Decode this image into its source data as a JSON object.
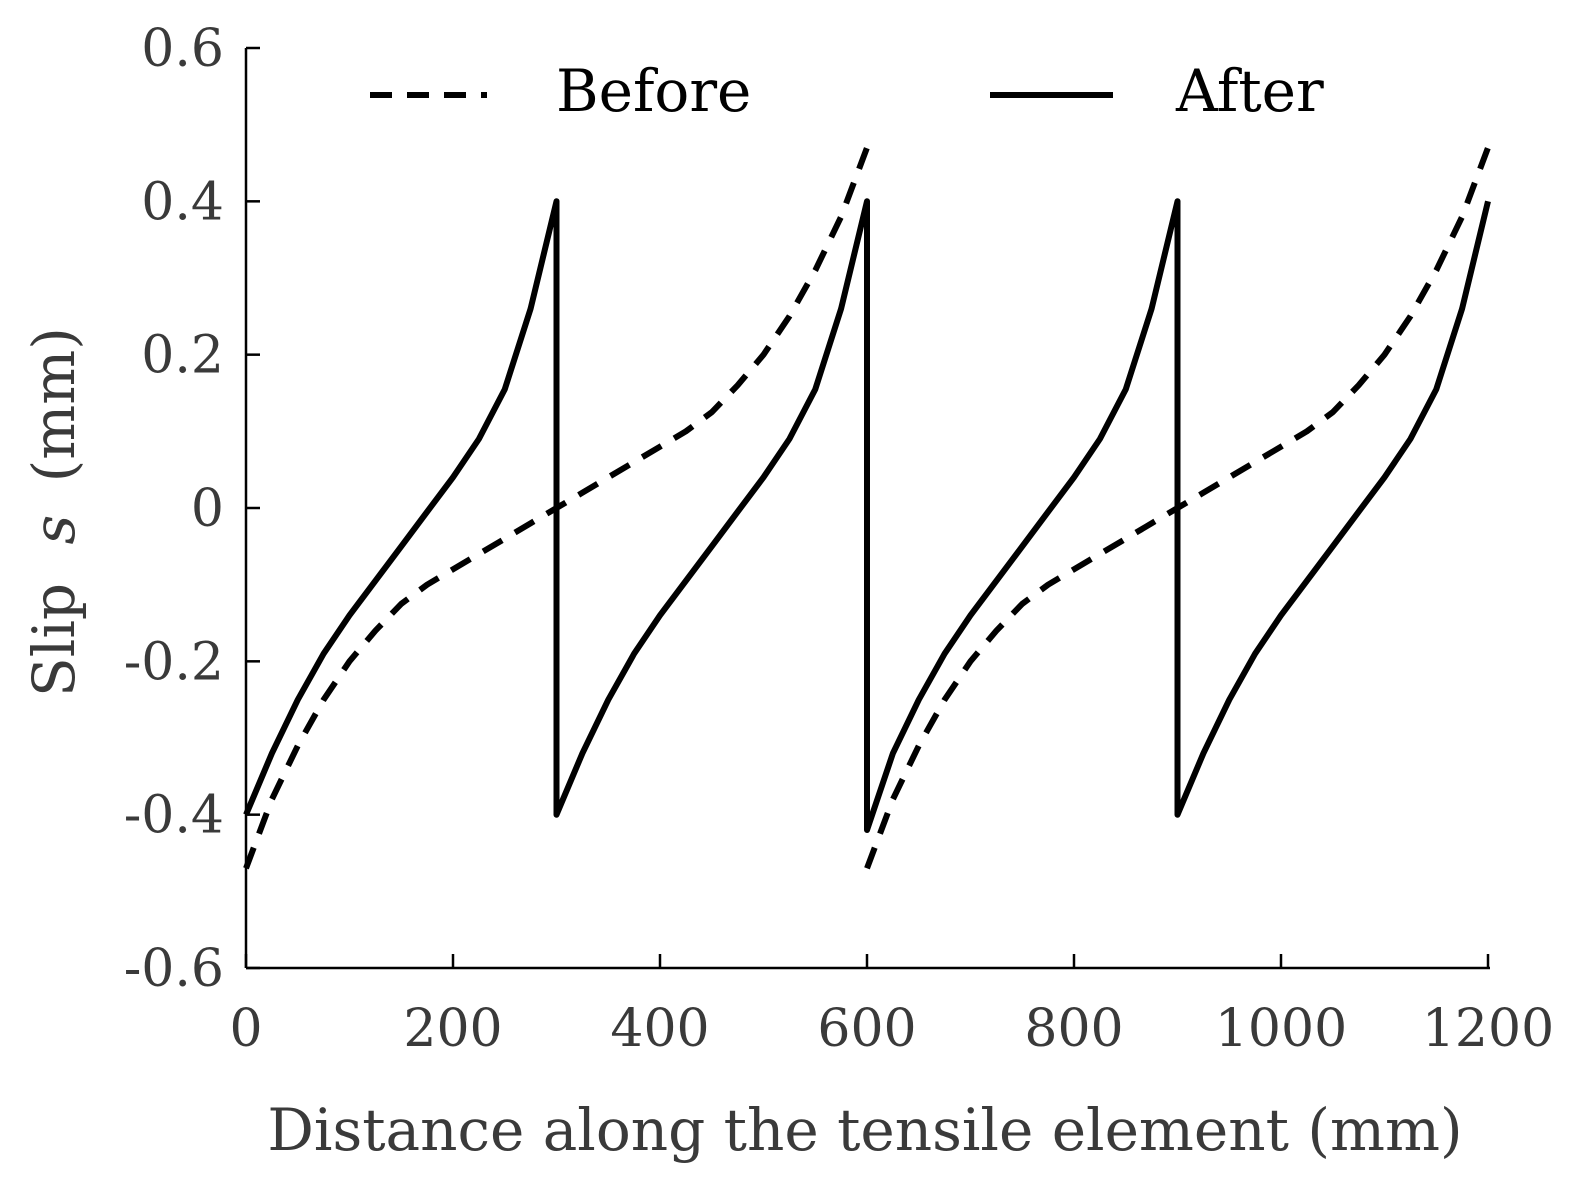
{
  "chart_data": {
    "type": "line",
    "title": "",
    "xlabel": "Distance along the tensile element (mm)",
    "ylabel_main": "Slip",
    "ylabel_symbol": "s",
    "ylabel_unit": "(mm)",
    "xlim": [
      0,
      1200
    ],
    "ylim": [
      -0.6,
      0.6
    ],
    "x_ticks": [
      0,
      200,
      400,
      600,
      800,
      1000,
      1200
    ],
    "x_tick_labels": [
      "0",
      "200",
      "400",
      "600",
      "800",
      "1000",
      "1200"
    ],
    "y_ticks": [
      0.6,
      0.4,
      0.2,
      0,
      -0.2,
      -0.4,
      -0.6
    ],
    "y_tick_labels": [
      "0.6",
      "0.4",
      "0.2",
      "0",
      "-0.2",
      "-0.4",
      "-0.6"
    ],
    "grid": false,
    "legend": {
      "placement": "top",
      "entries": [
        "Before",
        "After"
      ]
    },
    "series": [
      {
        "name": "Before",
        "style": "dashed",
        "segments": [
          [
            [
              0,
              -0.47
            ],
            [
              25,
              -0.38
            ],
            [
              50,
              -0.31
            ],
            [
              75,
              -0.25
            ],
            [
              100,
              -0.2
            ],
            [
              125,
              -0.16
            ],
            [
              150,
              -0.125
            ],
            [
              175,
              -0.1
            ],
            [
              200,
              -0.08
            ],
            [
              225,
              -0.06
            ],
            [
              250,
              -0.04
            ],
            [
              275,
              -0.02
            ],
            [
              300,
              0.0
            ],
            [
              325,
              0.02
            ],
            [
              350,
              0.04
            ],
            [
              375,
              0.06
            ],
            [
              400,
              0.08
            ],
            [
              425,
              0.1
            ],
            [
              450,
              0.125
            ],
            [
              475,
              0.16
            ],
            [
              500,
              0.2
            ],
            [
              525,
              0.25
            ],
            [
              550,
              0.31
            ],
            [
              575,
              0.38
            ],
            [
              600,
              0.47
            ]
          ],
          [
            [
              600,
              -0.47
            ],
            [
              625,
              -0.38
            ],
            [
              650,
              -0.31
            ],
            [
              675,
              -0.25
            ],
            [
              700,
              -0.2
            ],
            [
              725,
              -0.16
            ],
            [
              750,
              -0.125
            ],
            [
              775,
              -0.1
            ],
            [
              800,
              -0.08
            ],
            [
              825,
              -0.06
            ],
            [
              850,
              -0.04
            ],
            [
              875,
              -0.02
            ],
            [
              900,
              0.0
            ],
            [
              925,
              0.02
            ],
            [
              950,
              0.04
            ],
            [
              975,
              0.06
            ],
            [
              1000,
              0.08
            ],
            [
              1025,
              0.1
            ],
            [
              1050,
              0.125
            ],
            [
              1075,
              0.16
            ],
            [
              1100,
              0.2
            ],
            [
              1125,
              0.25
            ],
            [
              1150,
              0.31
            ],
            [
              1175,
              0.38
            ],
            [
              1200,
              0.47
            ]
          ]
        ]
      },
      {
        "name": "After",
        "style": "solid",
        "segments": [
          [
            [
              0,
              -0.4
            ],
            [
              25,
              -0.32
            ],
            [
              50,
              -0.25
            ],
            [
              75,
              -0.19
            ],
            [
              100,
              -0.14
            ],
            [
              125,
              -0.095
            ],
            [
              150,
              -0.05
            ],
            [
              175,
              -0.005
            ],
            [
              200,
              0.04
            ],
            [
              225,
              0.09
            ],
            [
              250,
              0.155
            ],
            [
              275,
              0.26
            ],
            [
              300,
              0.4
            ],
            [
              300,
              -0.4
            ],
            [
              325,
              -0.32
            ],
            [
              350,
              -0.25
            ],
            [
              375,
              -0.19
            ],
            [
              400,
              -0.14
            ],
            [
              425,
              -0.095
            ],
            [
              450,
              -0.05
            ],
            [
              475,
              -0.005
            ],
            [
              500,
              0.04
            ],
            [
              525,
              0.09
            ],
            [
              550,
              0.155
            ],
            [
              575,
              0.26
            ],
            [
              600,
              0.4
            ],
            [
              600,
              -0.42
            ],
            [
              625,
              -0.32
            ],
            [
              650,
              -0.25
            ],
            [
              675,
              -0.19
            ],
            [
              700,
              -0.14
            ],
            [
              725,
              -0.095
            ],
            [
              750,
              -0.05
            ],
            [
              775,
              -0.005
            ],
            [
              800,
              0.04
            ],
            [
              825,
              0.09
            ],
            [
              850,
              0.155
            ],
            [
              875,
              0.26
            ],
            [
              900,
              0.4
            ],
            [
              900,
              -0.4
            ],
            [
              925,
              -0.32
            ],
            [
              950,
              -0.25
            ],
            [
              975,
              -0.19
            ],
            [
              1000,
              -0.14
            ],
            [
              1025,
              -0.095
            ],
            [
              1050,
              -0.05
            ],
            [
              1075,
              -0.005
            ],
            [
              1100,
              0.04
            ],
            [
              1125,
              0.09
            ],
            [
              1150,
              0.155
            ],
            [
              1175,
              0.26
            ],
            [
              1200,
              0.4
            ]
          ]
        ]
      }
    ]
  }
}
